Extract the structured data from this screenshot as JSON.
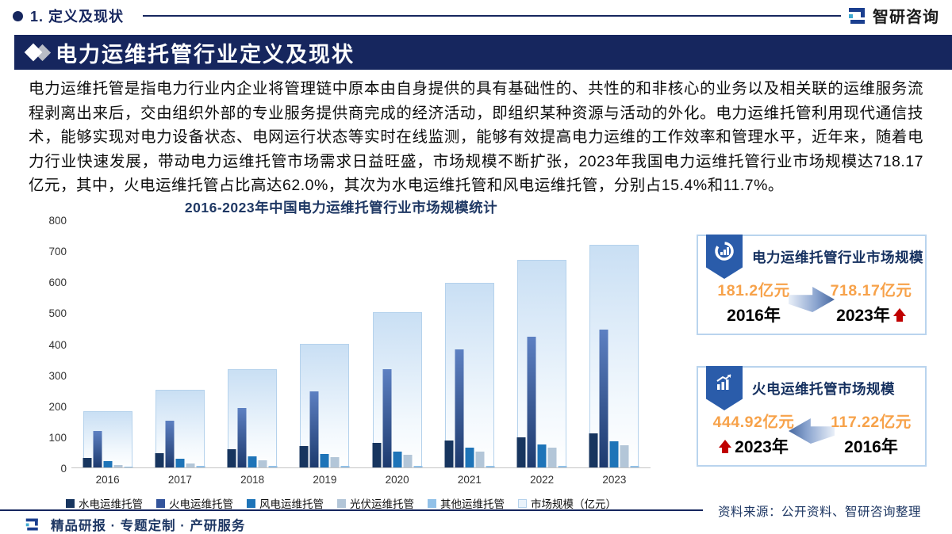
{
  "header": {
    "section_label": "1. 定义及现状",
    "logo_text": "智研咨询"
  },
  "banner": {
    "title": "电力运维托管行业定义及现状"
  },
  "paragraph": "电力运维托管是指电力行业内企业将管理链中原本由自身提供的具有基础性的、共性的和非核心的业务以及相关联的运维服务流程剥离出来后，交由组织外部的专业服务提供商完成的经济活动，即组织某种资源与活动的外化。电力运维托管利用现代通信技术，能够实现对电力设备状态、电网运行状态等实时在线监测，能够有效提高电力运维的工作效率和管理水平，近年来，随着电力行业快速发展，带动电力运维托管市场需求日益旺盛，市场规模不断扩张，2023年我国电力运维托管行业市场规模达718.17亿元，其中，火电运维托管占比高达62.0%，其次为水电运维托管和风电运维托管，分别占15.4%和11.7%。",
  "chart_data": {
    "type": "bar",
    "title": "2016-2023年中国电力运维托管行业市场规模统计",
    "categories": [
      "2016",
      "2017",
      "2018",
      "2019",
      "2020",
      "2021",
      "2022",
      "2023"
    ],
    "series": [
      {
        "name": "水电运维托管",
        "values": [
          31,
          46,
          60,
          70,
          78,
          88,
          98,
          110
        ]
      },
      {
        "name": "火电运维托管",
        "values": [
          117.22,
          150,
          192,
          246,
          318,
          380,
          423,
          444.92
        ]
      },
      {
        "name": "风电运维托管",
        "values": [
          20,
          29,
          37,
          44,
          51,
          63,
          75,
          84
        ]
      },
      {
        "name": "光伏运维托管",
        "values": [
          7,
          14,
          23,
          32,
          41,
          52,
          63,
          72
        ]
      },
      {
        "name": "其他运维托管",
        "values": [
          3,
          4,
          4,
          4,
          5,
          5,
          5,
          5
        ]
      }
    ],
    "market_total": {
      "name": "市场规模（亿元）",
      "values": [
        181.2,
        250,
        318,
        398,
        500,
        595,
        670,
        718.17
      ]
    },
    "unit": "亿元",
    "ylim": [
      0,
      800
    ],
    "yticks": [
      0,
      100,
      200,
      300,
      400,
      500,
      600,
      700,
      800
    ],
    "grid": false,
    "legend_position": "bottom"
  },
  "cards": [
    {
      "title": "电力运维托管行业市场规模",
      "icon": "doughnut-chart-icon",
      "left_value": "181.2亿元",
      "left_year": "2016年",
      "right_value": "718.17亿元",
      "right_year": "2023年",
      "arrow_direction": "right"
    },
    {
      "title": "火电运维托管市场规模",
      "icon": "bar-chart-growth-icon",
      "left_value": "444.92亿元",
      "left_year": "2023年",
      "right_value": "117.22亿元",
      "right_year": "2016年",
      "arrow_direction": "left"
    }
  ],
  "source_note": "资料来源：公开资料、智研咨询整理",
  "footer": {
    "tagline": "精品研报 · 专题定制 · 产研服务"
  },
  "colors": {
    "navy": "#16265e",
    "chart_title_navy": "#1f3864",
    "series_hydro": "#17355f",
    "series_thermal": "#33549b",
    "series_wind": "#1e74b8",
    "series_solar": "#b3c6d8",
    "series_other": "#92c1e8",
    "market_bar_fill": "#d8e8f8",
    "market_bar_border": "#b5d2ec",
    "value_orange": "#f7a24a",
    "arrow_red": "#c00000"
  }
}
